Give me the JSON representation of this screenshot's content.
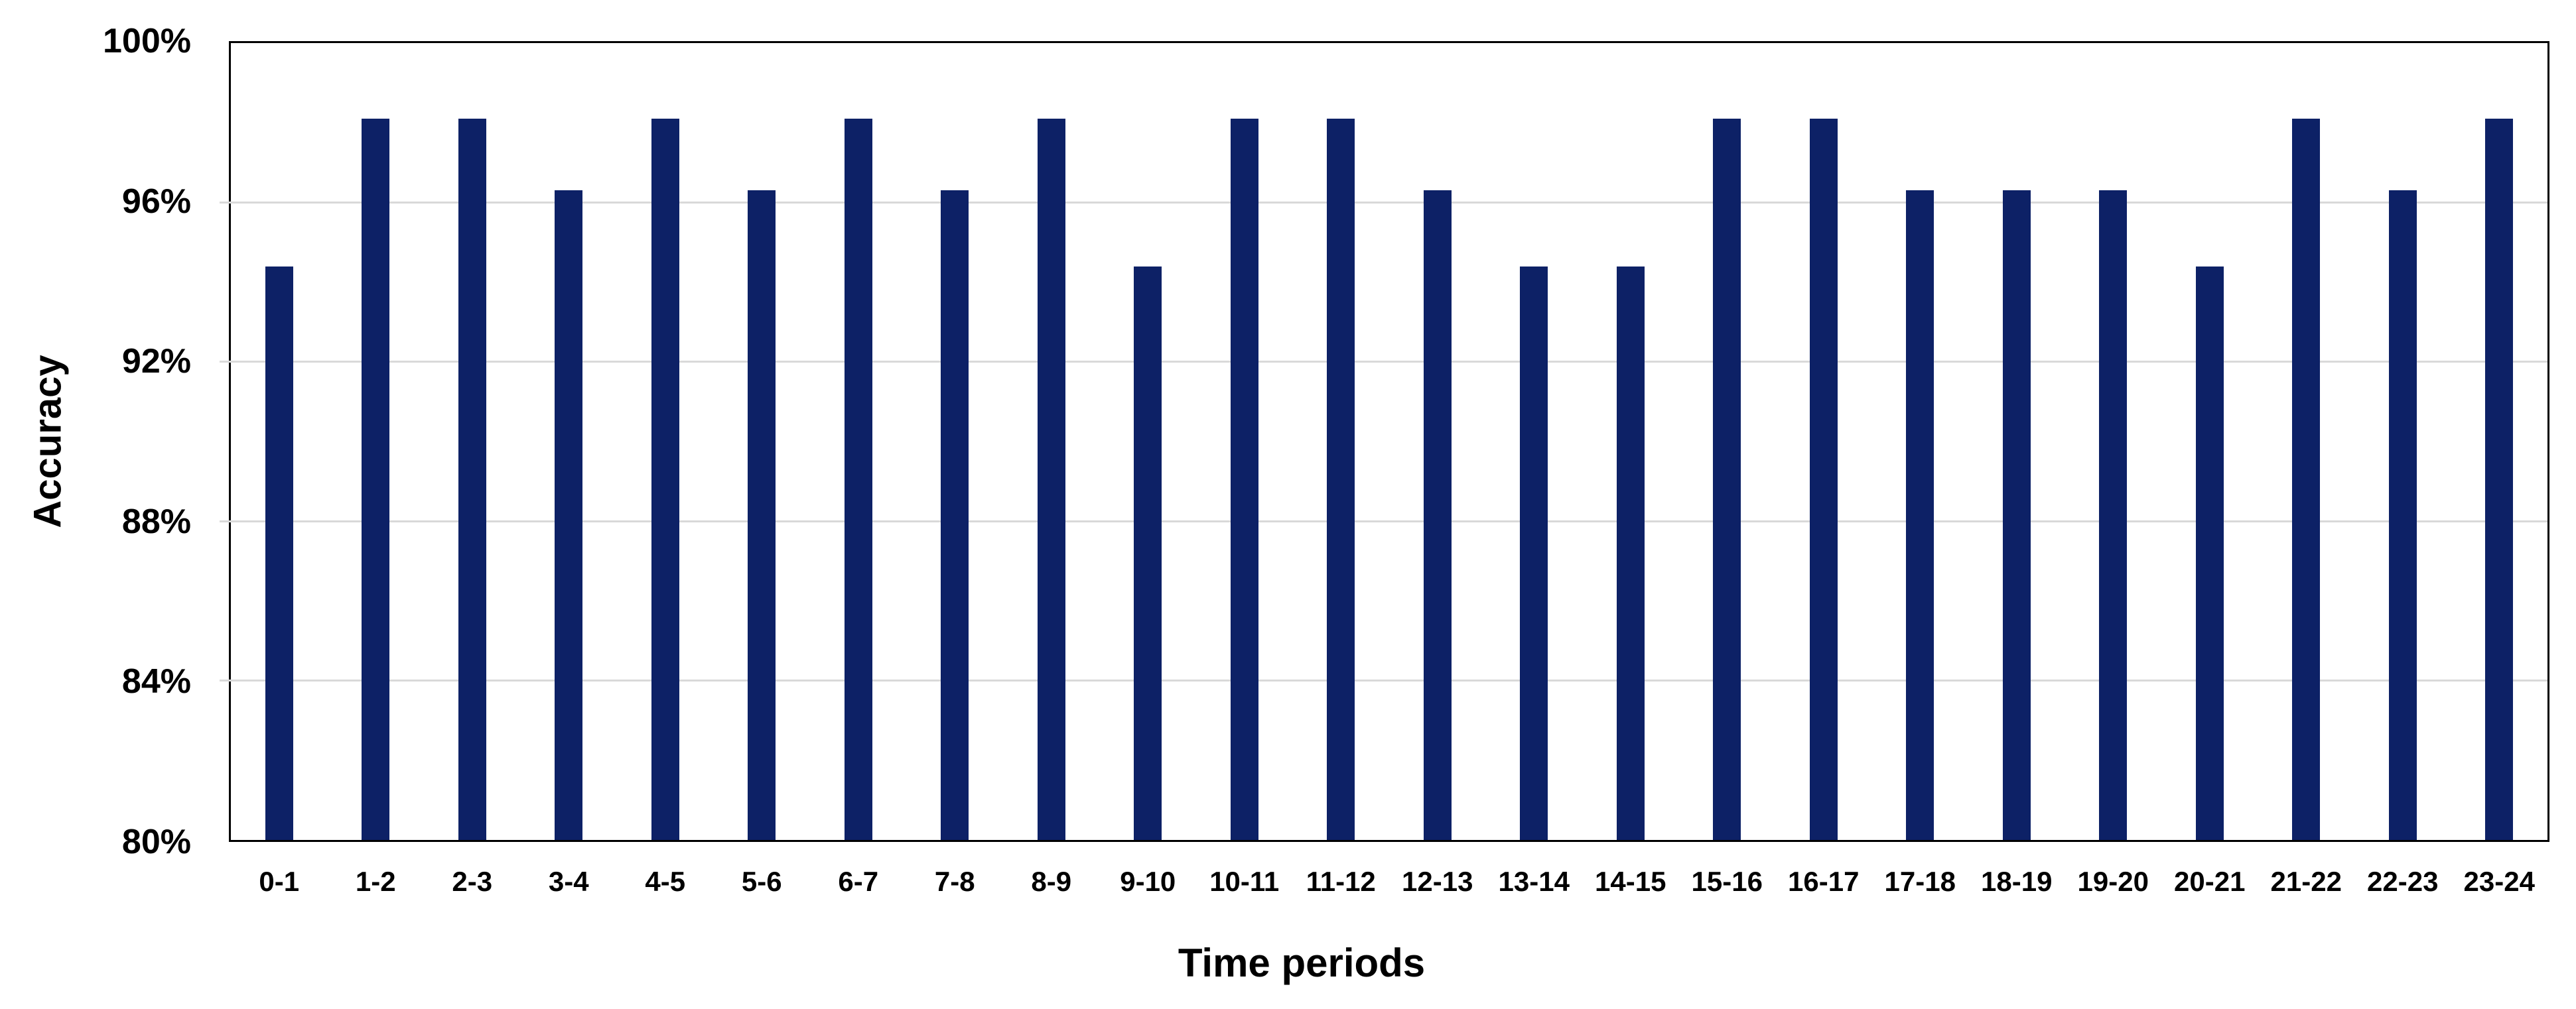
{
  "chart_data": {
    "type": "bar",
    "title": "",
    "xlabel": "Time periods",
    "ylabel": "Accuracy",
    "categories": [
      "0-1",
      "1-2",
      "2-3",
      "3-4",
      "4-5",
      "5-6",
      "6-7",
      "7-8",
      "8-9",
      "9-10",
      "10-11",
      "11-12",
      "12-13",
      "13-14",
      "14-15",
      "15-16",
      "16-17",
      "17-18",
      "18-19",
      "19-20",
      "20-21",
      "21-22",
      "22-23",
      "23-24"
    ],
    "values": [
      94.4,
      98.1,
      98.1,
      96.3,
      98.1,
      96.3,
      98.1,
      96.3,
      98.1,
      94.4,
      98.1,
      98.1,
      96.3,
      94.4,
      94.4,
      98.1,
      98.1,
      96.3,
      96.3,
      96.3,
      94.4,
      98.1,
      96.3,
      98.1
    ],
    "ylim": [
      80,
      100
    ],
    "ytick_step": 4,
    "ytick_labels": [
      "80%",
      "84%",
      "88%",
      "92%",
      "96%",
      "100%"
    ],
    "grid": "horizontal-only",
    "gridline_values": [
      84,
      88,
      92,
      96
    ],
    "legend_position": "none",
    "colors": {
      "bar": "#0d2166",
      "gridline": "#d9d9d9",
      "axis_frame": "#000000",
      "text": "#000000",
      "background": "#ffffff"
    }
  }
}
